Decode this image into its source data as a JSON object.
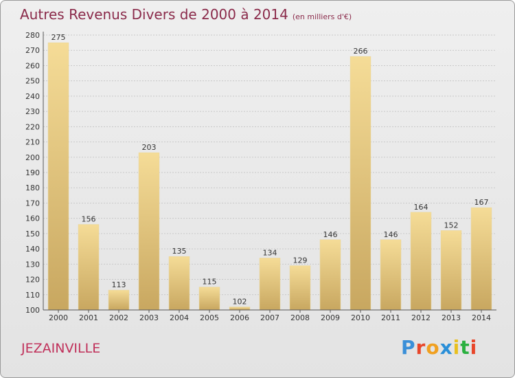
{
  "title": {
    "main": "Autres Revenus Divers de 2000 à 2014",
    "sub": "(en milliers d'€)"
  },
  "town": "JEZAINVILLE",
  "logo": {
    "text": "Proxiti",
    "letter_colors": [
      "#3a8fd8",
      "#e8462a",
      "#f0a020",
      "#2a8fd8",
      "#e8c020",
      "#2ab040",
      "#e8462a"
    ]
  },
  "colors": {
    "title": "#8a2a4a",
    "town": "#c0305a",
    "bar_light": "#f5dc97",
    "bar_dark": "#c8a760",
    "grid": "#c8c8c8"
  },
  "chart_data": {
    "type": "bar",
    "title": "Autres Revenus Divers de 2000 à 2014",
    "subtitle": "(en milliers d'€)",
    "categories": [
      "2000",
      "2001",
      "2002",
      "2003",
      "2004",
      "2005",
      "2006",
      "2007",
      "2008",
      "2009",
      "2010",
      "2011",
      "2012",
      "2013",
      "2014"
    ],
    "values": [
      275,
      156,
      113,
      203,
      135,
      115,
      102,
      134,
      129,
      146,
      266,
      146,
      164,
      152,
      167
    ],
    "ylim": [
      100,
      280
    ],
    "yticks": [
      100,
      110,
      120,
      130,
      140,
      150,
      160,
      170,
      180,
      190,
      200,
      210,
      220,
      230,
      240,
      250,
      260,
      270,
      280
    ],
    "grid": true,
    "xlabel": "",
    "ylabel": ""
  }
}
